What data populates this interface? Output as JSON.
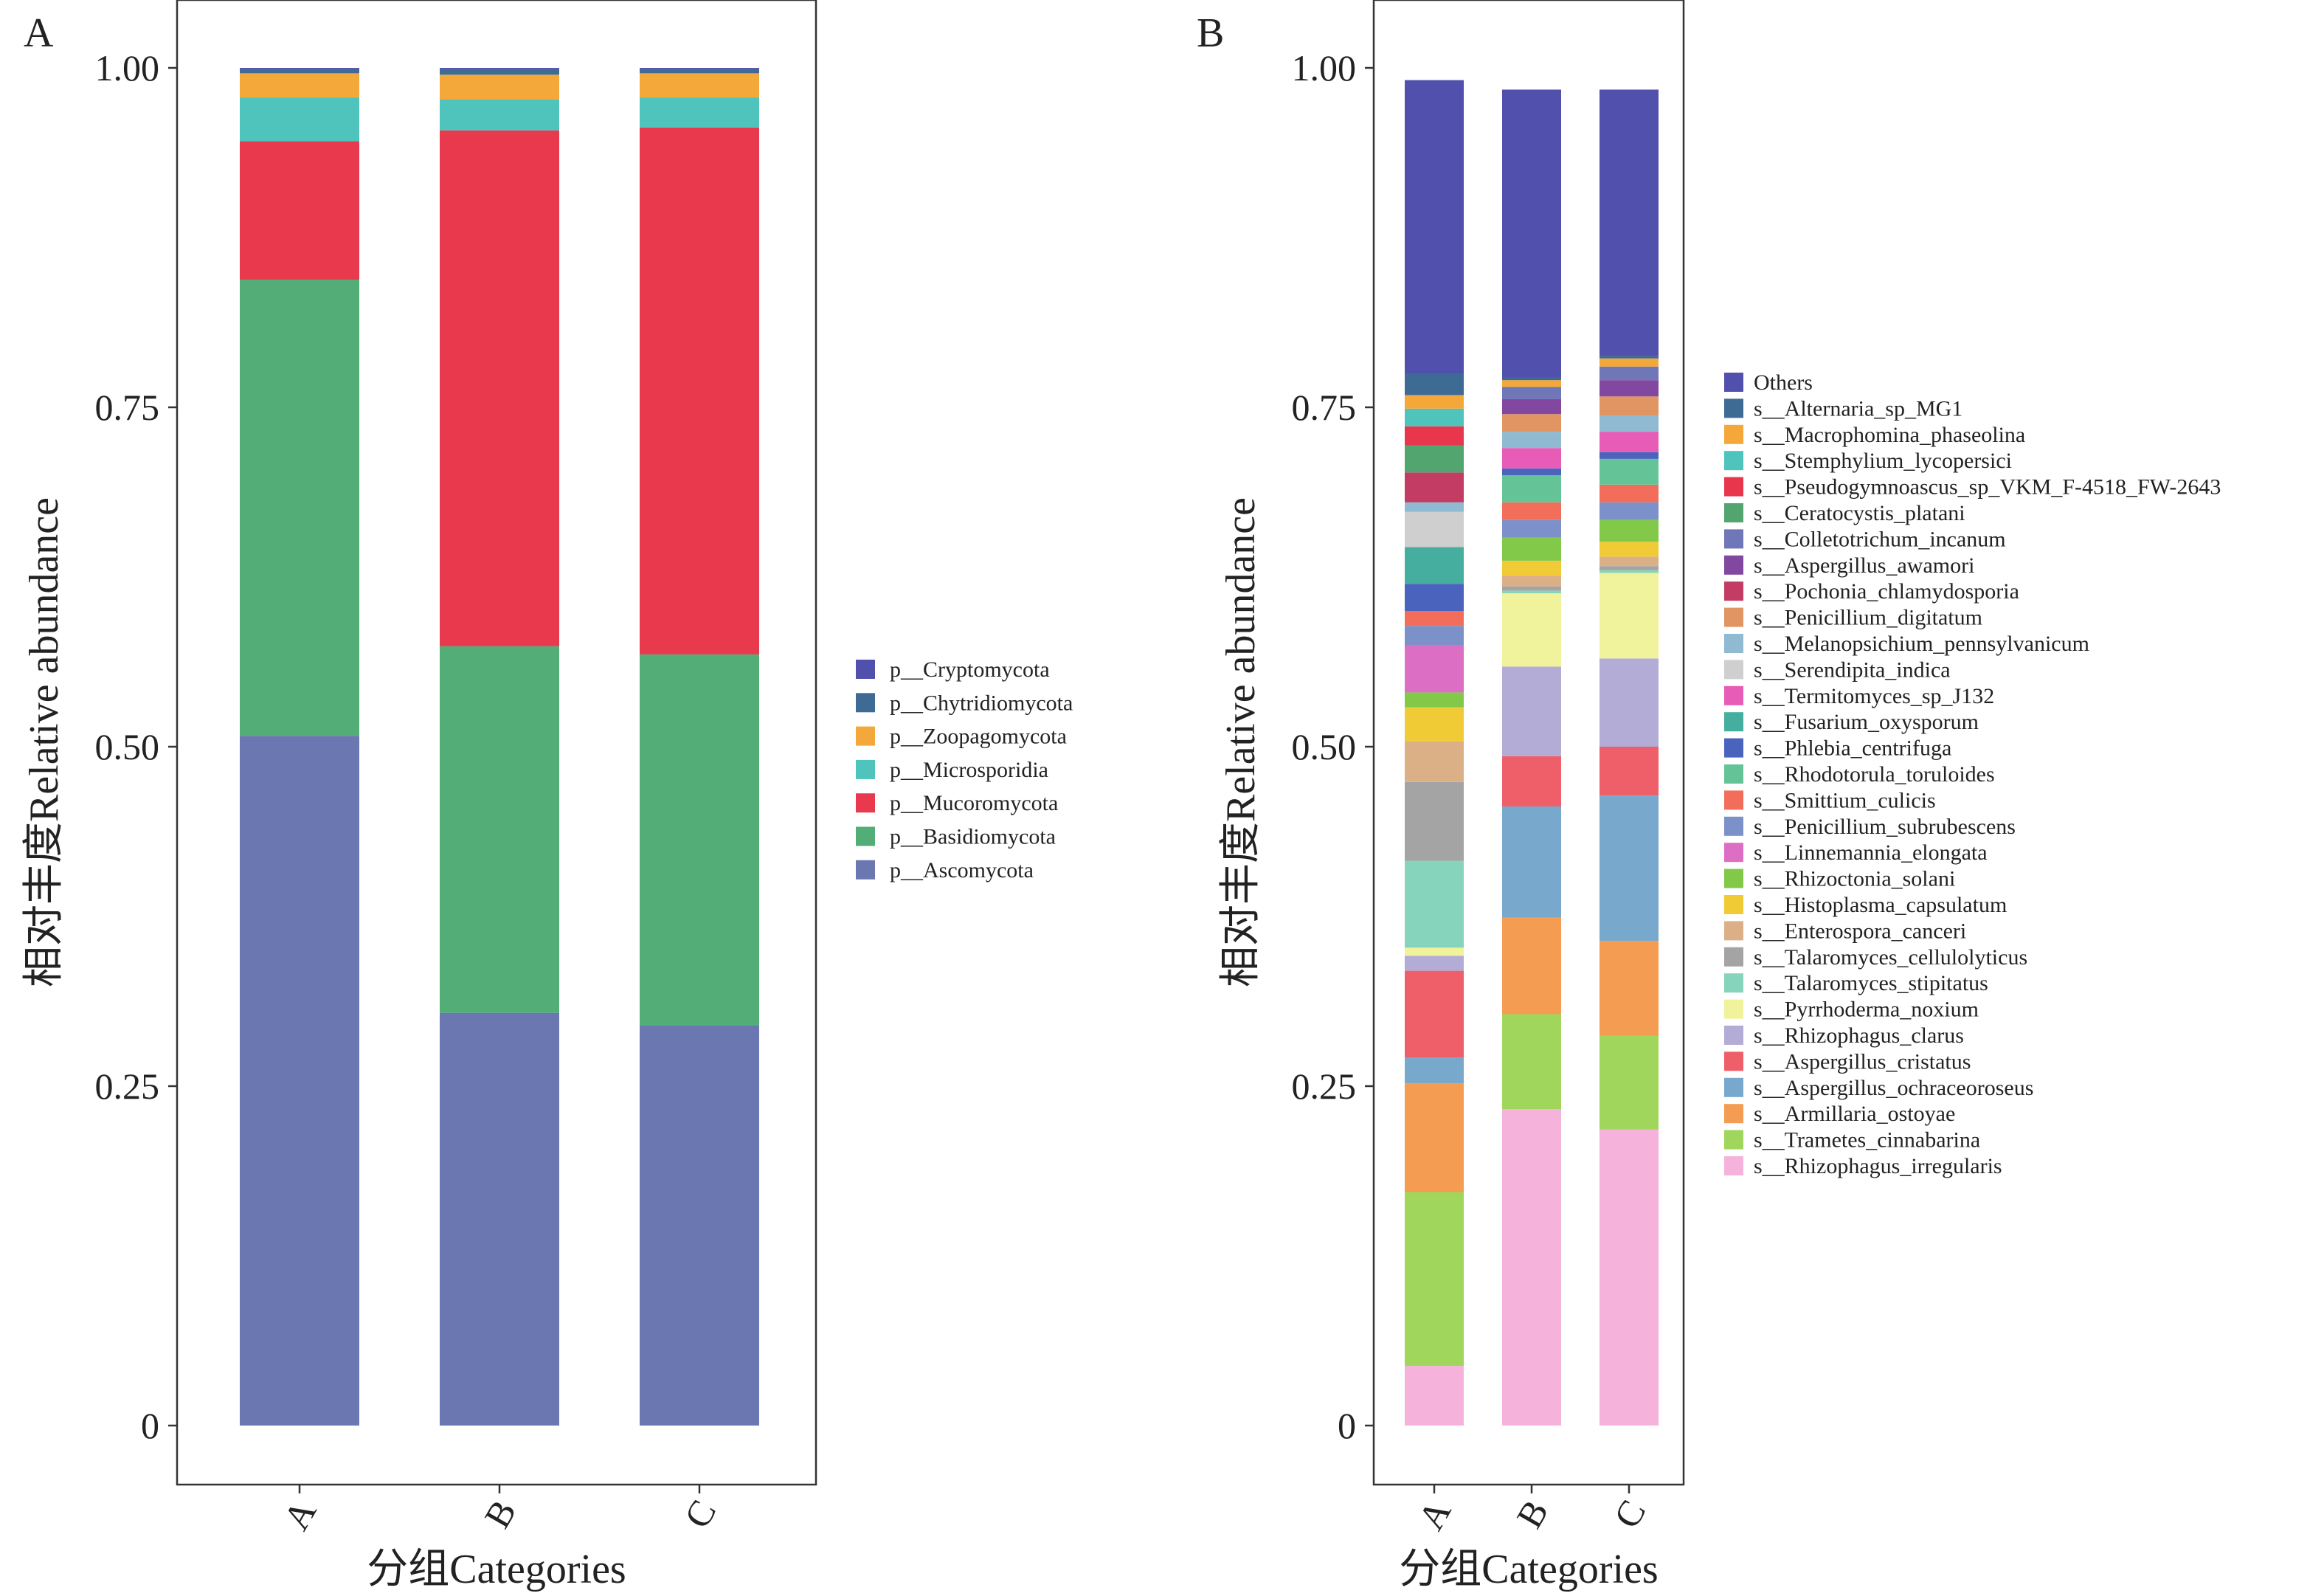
{
  "chart_data": [
    {
      "panel": "A",
      "type": "bar",
      "stacked": true,
      "xlabel": "分组Categories",
      "ylabel": "相对丰度Relative abundance",
      "ylim": [
        -0.05,
        1.05
      ],
      "yticks": [
        0,
        0.25,
        0.5,
        0.75,
        1.0
      ],
      "ytick_labels": [
        "0",
        "0.25",
        "0.50",
        "0.75",
        "1.00"
      ],
      "categories": [
        "A",
        "B",
        "C"
      ],
      "grid": false,
      "legend_position": "right",
      "series": [
        {
          "name": "p__Ascomycota",
          "color": "#6b77b0",
          "values": [
            0.508,
            0.304,
            0.295
          ]
        },
        {
          "name": "p__Basidiomycota",
          "color": "#52ad77",
          "values": [
            0.336,
            0.27,
            0.273
          ]
        },
        {
          "name": "p__Mucoromycota",
          "color": "#e8394d",
          "values": [
            0.102,
            0.38,
            0.388
          ]
        },
        {
          "name": "p__Microsporidia",
          "color": "#4ec4bd",
          "values": [
            0.032,
            0.023,
            0.022
          ]
        },
        {
          "name": "p__Zoopagomycota",
          "color": "#f4a83a",
          "values": [
            0.018,
            0.018,
            0.018
          ]
        },
        {
          "name": "p__Chytridiomycota",
          "color": "#3e6b94",
          "values": [
            0.003,
            0.004,
            0.003
          ]
        },
        {
          "name": "p__Cryptomycota",
          "color": "#5150ad",
          "values": [
            0.001,
            0.001,
            0.001
          ]
        }
      ]
    },
    {
      "panel": "B",
      "type": "bar",
      "stacked": true,
      "xlabel": "分组Categories",
      "ylabel": "相对丰度Relative abundance",
      "ylim": [
        -0.05,
        1.05
      ],
      "yticks": [
        0,
        0.25,
        0.5,
        0.75,
        1.0
      ],
      "ytick_labels": [
        "0",
        "0.25",
        "0.50",
        "0.75",
        "1.00"
      ],
      "categories": [
        "A",
        "B",
        "C"
      ],
      "grid": false,
      "legend_position": "right",
      "series": [
        {
          "name": "s__Rhizophagus_irregularis",
          "color": "#f5b3dc",
          "values": [
            0.044,
            0.233,
            0.218
          ]
        },
        {
          "name": "s__Trametes_cinnabarina",
          "color": "#9fd65b",
          "values": [
            0.128,
            0.07,
            0.069
          ]
        },
        {
          "name": "s__Armillaria_ostoyae",
          "color": "#f39c52",
          "values": [
            0.08,
            0.071,
            0.07
          ]
        },
        {
          "name": "s__Aspergillus_ochraceoroseus",
          "color": "#78a9cd",
          "values": [
            0.019,
            0.082,
            0.107
          ]
        },
        {
          "name": "s__Aspergillus_cristatus",
          "color": "#ef5f6a",
          "values": [
            0.064,
            0.037,
            0.036
          ]
        },
        {
          "name": "s__Rhizophagus_clarus",
          "color": "#b2acd6",
          "values": [
            0.011,
            0.066,
            0.065
          ]
        },
        {
          "name": "s__Pyrrhoderma_noxium",
          "color": "#f0f39c",
          "values": [
            0.006,
            0.054,
            0.063
          ]
        },
        {
          "name": "s__Talaromyces_stipitatus",
          "color": "#85d4bb",
          "values": [
            0.064,
            0.002,
            0.002
          ]
        },
        {
          "name": "s__Talaromyces_cellulolyticus",
          "color": "#a4a4a4",
          "values": [
            0.058,
            0.003,
            0.003
          ]
        },
        {
          "name": "s__Enterospora_canceri",
          "color": "#dcb086",
          "values": [
            0.03,
            0.008,
            0.007
          ]
        },
        {
          "name": "s__Histoplasma_capsulatum",
          "color": "#f0cb36",
          "values": [
            0.025,
            0.011,
            0.011
          ]
        },
        {
          "name": "s__Rhizoctonia_solani",
          "color": "#83c949",
          "values": [
            0.011,
            0.017,
            0.016
          ]
        },
        {
          "name": "s__Linnemannia_elongata",
          "color": "#dc6ec3",
          "values": [
            0.035,
            0.0,
            0.0
          ]
        },
        {
          "name": "s__Penicillium_subrubescens",
          "color": "#7c91c9",
          "values": [
            0.014,
            0.013,
            0.013
          ]
        },
        {
          "name": "s__Smittium_culicis",
          "color": "#f26e5b",
          "values": [
            0.011,
            0.013,
            0.013
          ]
        },
        {
          "name": "s__Rhodotorula_toruloides",
          "color": "#65c497",
          "values": [
            0.0,
            0.02,
            0.019
          ]
        },
        {
          "name": "s__Phlebia_centrifuga",
          "color": "#4a64bd",
          "values": [
            0.02,
            0.005,
            0.005
          ]
        },
        {
          "name": "s__Fusarium_oxysporum",
          "color": "#46ae9f",
          "values": [
            0.027,
            0.0,
            0.0
          ]
        },
        {
          "name": "s__Termitomyces_sp_J132",
          "color": "#e65cb6",
          "values": [
            0.0,
            0.015,
            0.015
          ]
        },
        {
          "name": "s__Serendipita_indica",
          "color": "#cfcfcf",
          "values": [
            0.026,
            0.0,
            0.0
          ]
        },
        {
          "name": "s__Melanopsichium_pennsylvanicum",
          "color": "#8fbad1",
          "values": [
            0.007,
            0.012,
            0.012
          ]
        },
        {
          "name": "s__Penicillium_digitatum",
          "color": "#e09562",
          "values": [
            0.0,
            0.013,
            0.014
          ]
        },
        {
          "name": "s__Pochonia_chlamydosporia",
          "color": "#c23c63",
          "values": [
            0.022,
            0.0,
            0.0
          ]
        },
        {
          "name": "s__Aspergillus_awamori",
          "color": "#8248a0",
          "values": [
            0.0,
            0.011,
            0.012
          ]
        },
        {
          "name": "s__Colletotrichum_incanum",
          "color": "#7077b8",
          "values": [
            0.0,
            0.009,
            0.01
          ]
        },
        {
          "name": "s__Ceratocystis_platani",
          "color": "#52a56e",
          "values": [
            0.02,
            0.0,
            0.0
          ]
        },
        {
          "name": "s__Pseudogymnoascus_sp_VKM_F-4518_FW-2643",
          "color": "#e8374c",
          "values": [
            0.014,
            0.0,
            0.0
          ]
        },
        {
          "name": "s__Stemphylium_lycopersici",
          "color": "#4ec4bd",
          "values": [
            0.013,
            0.0,
            0.0
          ]
        },
        {
          "name": "s__Macrophomina_phaseolina",
          "color": "#f4a83a",
          "values": [
            0.01,
            0.005,
            0.006
          ]
        },
        {
          "name": "s__Alternaria_sp_MG1",
          "color": "#3e6b94",
          "values": [
            0.016,
            0.002,
            0.002
          ]
        },
        {
          "name": "Others",
          "color": "#5150ad",
          "values": [
            0.216,
            0.212,
            0.196
          ]
        }
      ]
    }
  ]
}
